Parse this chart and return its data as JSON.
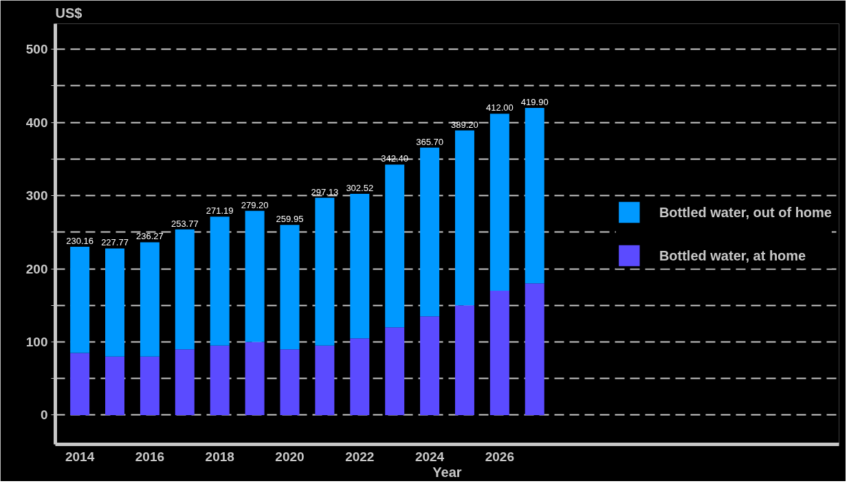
{
  "chart_data": {
    "type": "bar",
    "stacked": true,
    "xlabel": "Year",
    "ylabel": "US$",
    "categories": [
      "2014",
      null,
      "2016",
      null,
      "2018",
      null,
      "2020",
      null,
      "2022",
      null,
      "2024",
      null,
      "2026",
      null
    ],
    "series": [
      {
        "name": "Bottled water, at home",
        "color": "#5b4bff",
        "values": [
          85,
          80,
          80,
          90,
          95,
          100,
          90,
          95,
          105,
          120,
          135,
          150,
          170,
          180
        ]
      },
      {
        "name": "Bottled water, out of home",
        "color": "#0099ff",
        "values": [
          145.16,
          147.77,
          156.27,
          163.77,
          176.19,
          179.2,
          169.95,
          202.13,
          197.52,
          222.4,
          230.7,
          239.2,
          242.0,
          239.9
        ]
      }
    ],
    "totals": [
      "230.16",
      "227.77",
      "236.27",
      "253.77",
      "271.19",
      "279.20",
      "259.95",
      "297.13",
      "302.52",
      "342.40",
      "365.70",
      "389.20",
      "412.00",
      "419.90"
    ],
    "ylim": [
      -40,
      535
    ],
    "yticks": [
      0,
      {
        "value": 50,
        "label": null
      },
      100,
      {
        "value": 150,
        "label": null
      },
      200,
      {
        "value": 250,
        "label": null
      },
      300,
      {
        "value": 350,
        "label": null
      },
      400,
      {
        "value": 450,
        "label": null
      },
      500
    ],
    "grid": "y",
    "legend": "right"
  }
}
